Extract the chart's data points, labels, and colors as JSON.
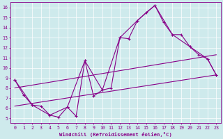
{
  "xlabel": "Windchill (Refroidissement éolien,°C)",
  "bg_color": "#ceeaec",
  "grid_color": "#ffffff",
  "line_color": "#880088",
  "xlim": [
    -0.5,
    23.5
  ],
  "ylim": [
    4.5,
    16.5
  ],
  "xticks": [
    0,
    1,
    2,
    3,
    4,
    5,
    6,
    7,
    8,
    9,
    10,
    11,
    12,
    13,
    14,
    15,
    16,
    17,
    18,
    19,
    20,
    21,
    22,
    23
  ],
  "yticks": [
    5,
    6,
    7,
    8,
    9,
    10,
    11,
    12,
    13,
    14,
    15,
    16
  ],
  "series": [
    {
      "x": [
        0,
        1,
        2,
        3,
        4,
        5,
        6,
        7,
        8,
        9,
        10,
        11,
        12,
        13,
        14,
        15,
        16,
        17,
        18,
        19,
        20,
        21,
        22,
        23
      ],
      "y": [
        8.8,
        7.3,
        6.3,
        6.2,
        5.3,
        5.1,
        6.1,
        5.2,
        10.7,
        7.2,
        7.8,
        8.0,
        13.0,
        12.9,
        14.7,
        15.5,
        16.2,
        14.5,
        13.3,
        13.3,
        12.1,
        11.3,
        10.9,
        9.3
      ],
      "marker": "+",
      "markersize": 3.5,
      "linewidth": 0.8
    },
    {
      "x": [
        0,
        2,
        4,
        6,
        8,
        10,
        12,
        14,
        16,
        18,
        20,
        22,
        23
      ],
      "y": [
        8.8,
        6.3,
        5.3,
        6.1,
        10.7,
        7.8,
        13.0,
        14.7,
        16.2,
        13.3,
        12.1,
        10.9,
        9.3
      ],
      "marker": "+",
      "markersize": 3.0,
      "linewidth": 0.8
    },
    {
      "x": [
        0,
        23
      ],
      "y": [
        6.2,
        9.3
      ],
      "marker": null,
      "markersize": 0,
      "linewidth": 0.8
    },
    {
      "x": [
        0,
        23
      ],
      "y": [
        8.0,
        11.3
      ],
      "marker": null,
      "markersize": 0,
      "linewidth": 0.8
    }
  ]
}
